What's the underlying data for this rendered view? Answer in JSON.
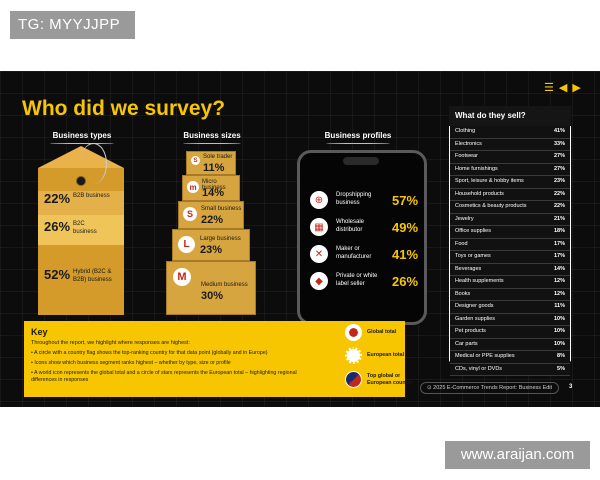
{
  "watermarks": {
    "top": "TG: MYYJJPP",
    "bottom": "www.araijan.com"
  },
  "slide": {
    "title": "Who did we survey?",
    "nav": {
      "menu_icon": "menu-icon",
      "prev_icon": "arrow-left-icon",
      "next_icon": "arrow-right-icon"
    },
    "business_types": {
      "heading": "Business types",
      "items": [
        {
          "pct": "22%",
          "label": "B2B business"
        },
        {
          "pct": "26%",
          "label": "B2C business"
        },
        {
          "pct": "52%",
          "label": "Hybrid (B2C & B2B) business"
        }
      ]
    },
    "business_sizes": {
      "heading": "Business sizes",
      "items": [
        {
          "badge": "S",
          "label": "Sole trader",
          "pct": "11%"
        },
        {
          "badge": "m",
          "label": "Micro business",
          "pct": "14%"
        },
        {
          "badge": "S",
          "label": "Small business",
          "pct": "22%"
        },
        {
          "badge": "L",
          "label": "Large business",
          "pct": "23%"
        },
        {
          "badge": "M",
          "label": "Medium business",
          "pct": "30%"
        }
      ]
    },
    "business_profiles": {
      "heading": "Business profiles",
      "items": [
        {
          "icon": "globe-arrows-icon",
          "label": "Dropshipping business",
          "pct": "57%"
        },
        {
          "icon": "warehouse-icon",
          "label": "Wholesale distributor",
          "pct": "49%"
        },
        {
          "icon": "tools-icon",
          "label": "Maker or manufacturer",
          "pct": "41%"
        },
        {
          "icon": "tag-icon",
          "label": "Private or white label seller",
          "pct": "26%"
        }
      ]
    },
    "what_sell": {
      "heading": "What do they sell?",
      "rows": [
        {
          "label": "Clothing",
          "value": "41%"
        },
        {
          "label": "Electronics",
          "value": "33%"
        },
        {
          "label": "Footwear",
          "value": "27%"
        },
        {
          "label": "Home furnishings",
          "value": "27%"
        },
        {
          "label": "Sport, leisure & hobby items",
          "value": "23%"
        },
        {
          "label": "Household products",
          "value": "22%"
        },
        {
          "label": "Cosmetics & beauty products",
          "value": "22%"
        },
        {
          "label": "Jewelry",
          "value": "21%"
        },
        {
          "label": "Office supplies",
          "value": "18%"
        },
        {
          "label": "Food",
          "value": "17%"
        },
        {
          "label": "Toys or games",
          "value": "17%"
        },
        {
          "label": "Beverages",
          "value": "14%"
        },
        {
          "label": "Health supplements",
          "value": "12%"
        },
        {
          "label": "Books",
          "value": "12%"
        },
        {
          "label": "Designer goods",
          "value": "11%"
        },
        {
          "label": "Garden supplies",
          "value": "10%"
        },
        {
          "label": "Pet products",
          "value": "10%"
        },
        {
          "label": "Car parts",
          "value": "10%"
        },
        {
          "label": "Medical or PPE supplies",
          "value": "8%"
        },
        {
          "label": "CDs, vinyl or DVDs",
          "value": "5%"
        }
      ]
    },
    "key": {
      "title": "Key",
      "intro": "Throughout the report, we highlight where responses are highest:",
      "bullets": [
        "A circle with a country flag shows the top-ranking country for that data point (globally and in Europe)",
        "Icons show which business segment ranks highest – whether by type, size or profile",
        "A world icon represents the global total and a circle of stars represents the European total – highlighting regional differences in responses"
      ],
      "legend": [
        {
          "icon": "world-icon",
          "label": "Global total"
        },
        {
          "icon": "eu-stars-icon",
          "label": "European total"
        },
        {
          "icon": "flag-australia-icon",
          "label": "Top global or European country"
        }
      ]
    },
    "footer": "2025 E-Commerce Trends Report: Business Edit",
    "page_number": "3",
    "colors": {
      "accent": "#f7c600",
      "background": "#0c0c0c",
      "badge_red": "#c2271d"
    }
  }
}
